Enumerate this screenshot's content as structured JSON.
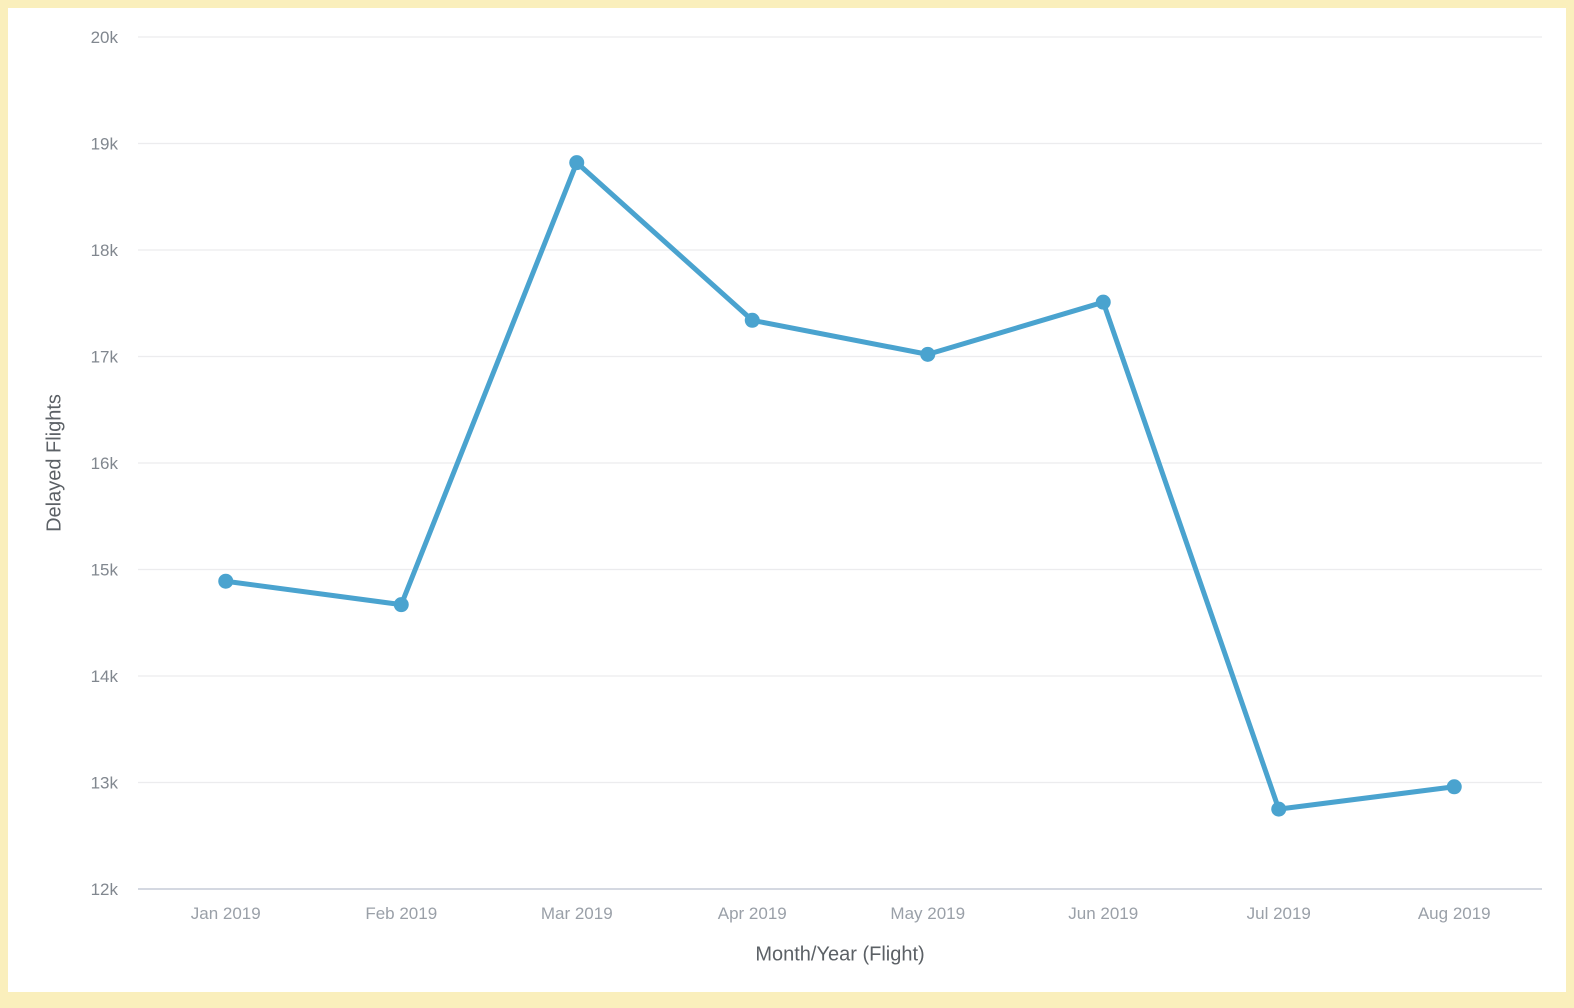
{
  "colors": {
    "frame": "#faefbc",
    "background": "#ffffff",
    "line": "#4aa3cf",
    "marker": "#4aa3cf",
    "grid": "#ececee",
    "axis_line": "#c6cbd7",
    "y_tick_label": "#81878f",
    "x_tick_label": "#9aa0a8",
    "axis_title": "#5c6166"
  },
  "chart_data": {
    "type": "line",
    "categories": [
      "Jan 2019",
      "Feb 2019",
      "Mar 2019",
      "Apr 2019",
      "May 2019",
      "Jun 2019",
      "Jul 2019",
      "Aug 2019"
    ],
    "values": [
      14890,
      14670,
      18820,
      17340,
      17020,
      17510,
      12750,
      12960
    ],
    "title": "",
    "xlabel": "Month/Year (Flight)",
    "ylabel": "Delayed Flights",
    "ylim": [
      12000,
      20000
    ],
    "yticks": [
      12000,
      13000,
      14000,
      15000,
      16000,
      17000,
      18000,
      19000,
      20000
    ],
    "ytick_labels": [
      "12k",
      "13k",
      "14k",
      "15k",
      "16k",
      "17k",
      "18k",
      "19k",
      "20k"
    ],
    "grid": "horizontal",
    "legend": "none",
    "marker": "circle"
  }
}
